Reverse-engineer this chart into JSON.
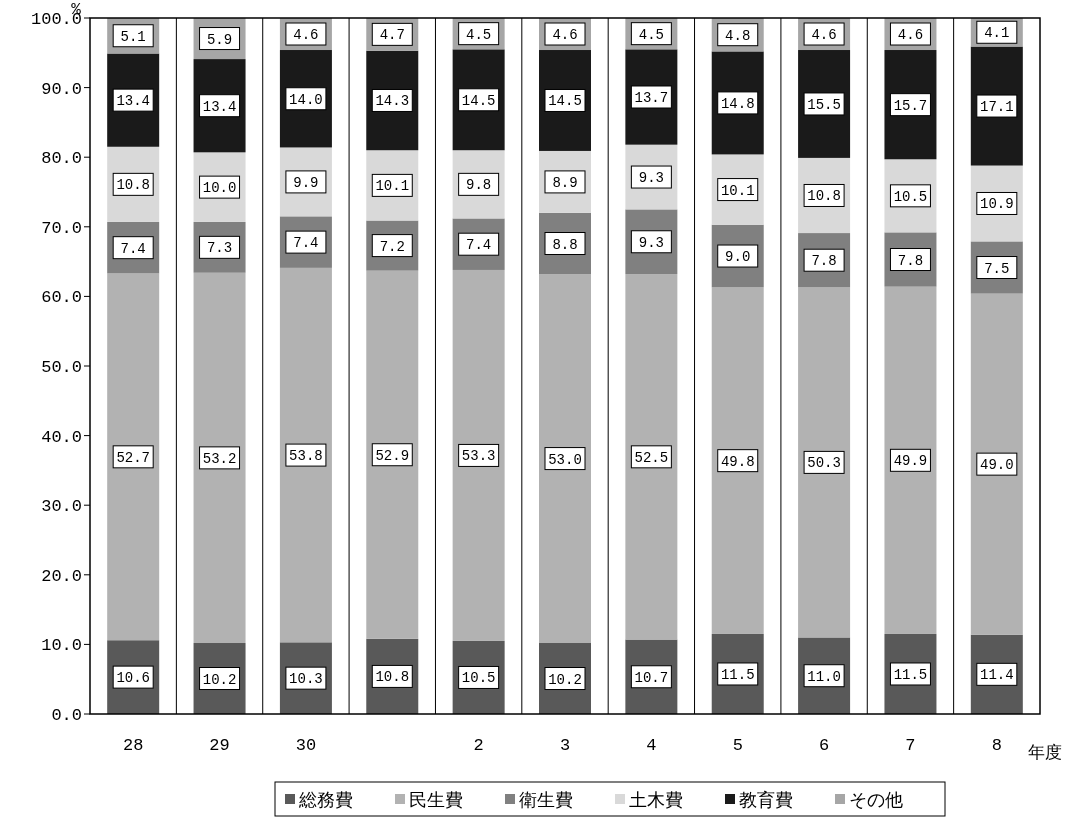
{
  "chart_data": {
    "type": "bar",
    "stacked": true,
    "ylabel": "%",
    "xlabel": "年度",
    "categories": [
      "28",
      "29",
      "30",
      null,
      "2",
      "3",
      "4",
      "5",
      "6",
      "7",
      "8"
    ],
    "series": [
      {
        "name": "総務費",
        "color": "#595959",
        "values": [
          10.6,
          10.2,
          10.3,
          10.8,
          10.5,
          10.2,
          10.7,
          11.5,
          11.0,
          11.5,
          11.4
        ],
        "value_labels": [
          "10.6",
          "10.2",
          "10.3",
          "10.8",
          "10.5",
          "10.2",
          "10.7",
          "11.5",
          "11.0",
          "11.5",
          "11.4"
        ]
      },
      {
        "name": "民生費",
        "color": "#b2b2b2",
        "values": [
          52.7,
          53.2,
          53.8,
          52.9,
          53.3,
          53.0,
          52.5,
          49.8,
          50.3,
          49.9,
          49.0
        ],
        "value_labels": [
          "52.7",
          "53.2",
          "53.8",
          "52.9",
          "53.3",
          "53.0",
          "52.5",
          "49.8",
          "50.3",
          "49.9",
          "49.0"
        ]
      },
      {
        "name": "衛生費",
        "color": "#808080",
        "values": [
          7.4,
          7.3,
          7.4,
          7.2,
          7.4,
          8.8,
          9.3,
          9.0,
          7.8,
          7.8,
          7.5
        ],
        "value_labels": [
          "7.4",
          "7.3",
          "7.4",
          "7.2",
          "7.4",
          "8.8",
          "9.3",
          "9.0",
          "7.8",
          "7.8",
          "7.5"
        ]
      },
      {
        "name": "土木費",
        "color": "#d9d9d9",
        "values": [
          10.8,
          10.0,
          9.9,
          10.1,
          9.8,
          8.9,
          9.3,
          10.1,
          10.8,
          10.5,
          10.9
        ],
        "value_labels": [
          "10.8",
          "10.0",
          "9.9",
          "10.1",
          "9.8",
          "8.9",
          "9.3",
          "10.1",
          "10.8",
          "10.5",
          "10.9"
        ]
      },
      {
        "name": "教育費",
        "color": "#1a1a1a",
        "values": [
          13.4,
          13.4,
          14.0,
          14.3,
          14.5,
          14.5,
          13.7,
          14.8,
          15.5,
          15.7,
          17.1
        ],
        "value_labels": [
          "13.4",
          "13.4",
          "14.0",
          "14.3",
          "14.5",
          "14.5",
          "13.7",
          "14.8",
          "15.5",
          "15.7",
          "17.1"
        ]
      },
      {
        "name": "その他",
        "color": "#a6a6a6",
        "values": [
          5.1,
          5.9,
          4.6,
          4.7,
          4.5,
          4.6,
          4.5,
          4.8,
          4.6,
          4.6,
          4.1
        ],
        "value_labels": [
          "5.1",
          "5.9",
          "4.6",
          "4.7",
          "4.5",
          "4.6",
          "4.5",
          "4.8",
          "4.6",
          "4.6",
          "4.1"
        ]
      }
    ],
    "ylim": [
      0,
      100
    ],
    "yticks": [
      {
        "value": 0,
        "label": "0.0"
      },
      {
        "value": 10,
        "label": "10.0"
      },
      {
        "value": 20,
        "label": "20.0"
      },
      {
        "value": 30,
        "label": "30.0"
      },
      {
        "value": 40,
        "label": "40.0"
      },
      {
        "value": 50,
        "label": "50.0"
      },
      {
        "value": 60,
        "label": "60.0"
      },
      {
        "value": 70,
        "label": "70.0"
      },
      {
        "value": 80,
        "label": "80.0"
      },
      {
        "value": 90,
        "label": "90.0"
      },
      {
        "value": 100,
        "label": "100.0"
      }
    ],
    "grid": "x",
    "legend": "bottom"
  }
}
